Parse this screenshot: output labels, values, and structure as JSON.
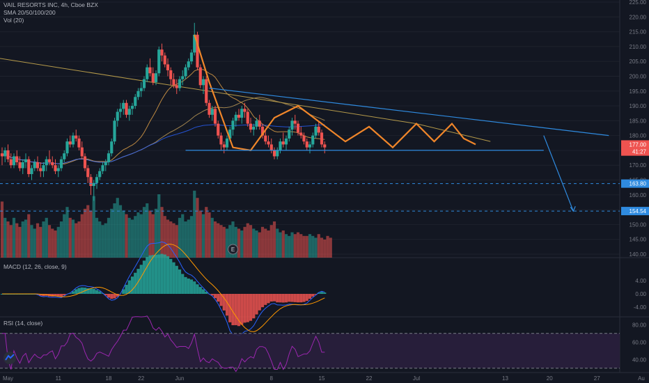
{
  "header": {
    "symbol_line": "VAIL RESORTS INC, 4h, Cboe BZX",
    "sma_line": "SMA 20/50/100/200",
    "vol_line": "Vol (20)"
  },
  "panes": {
    "macd_title": "MACD (12, 26, close, 9)",
    "rsi_title": "RSI (14, close)"
  },
  "colors": {
    "background": "#131722",
    "up": "#26a69a",
    "down": "#ef5350",
    "pattern_line": "#f0862a",
    "trendline": "#2f8be0",
    "macd_line": "#2962ff",
    "signal_line": "#ff9800",
    "rsi_line": "#9c27b0",
    "rsi_band": "#2a1f3d"
  },
  "chart_data": {
    "type": "candlestick",
    "interval": "4h",
    "price_axis": {
      "ticks": [
        140,
        145,
        150,
        155,
        160,
        165,
        170,
        175,
        180,
        185,
        190,
        195,
        200,
        205,
        210,
        215,
        220,
        225
      ],
      "tick_labels": [
        "140.00",
        "145.00",
        "150.00",
        "155.00",
        "160.00",
        "165.00",
        "170.00",
        "175.00",
        "180.00",
        "185.00",
        "190.00",
        "195.00",
        "200.00",
        "205.00",
        "210.00",
        "215.00",
        "220.00",
        "225.00"
      ]
    },
    "price_tags": [
      {
        "label": "177.00",
        "value": 177.0,
        "color": "#ef5350"
      },
      {
        "label": "41:27",
        "value": 174.6,
        "color": "#ef5350"
      },
      {
        "label": "163.80",
        "value": 163.8,
        "color": "#2f8be0"
      },
      {
        "label": "154.54",
        "value": 154.54,
        "color": "#2f8be0"
      }
    ],
    "time_axis": {
      "labels": [
        "May",
        "11",
        "18",
        "22",
        "Jun",
        "8",
        "15",
        "22",
        "Jul",
        "13",
        "20",
        "27",
        "Au"
      ],
      "x_index": [
        2,
        19,
        36,
        47,
        60,
        91,
        108,
        124,
        140,
        170,
        185,
        201,
        216
      ]
    },
    "candles": [
      [
        174,
        176,
        170,
        173
      ],
      [
        173,
        176,
        171,
        175
      ],
      [
        175,
        177,
        171,
        172
      ],
      [
        172,
        174,
        169,
        170
      ],
      [
        170,
        174,
        169,
        173
      ],
      [
        173,
        175,
        170,
        171
      ],
      [
        171,
        173,
        168,
        169
      ],
      [
        169,
        172,
        167,
        171
      ],
      [
        171,
        174,
        169,
        172
      ],
      [
        172,
        173,
        166,
        167
      ],
      [
        167,
        170,
        165,
        169
      ],
      [
        169,
        172,
        168,
        171
      ],
      [
        171,
        173,
        168,
        169
      ],
      [
        169,
        171,
        166,
        168
      ],
      [
        168,
        171,
        166,
        170
      ],
      [
        170,
        173,
        168,
        172
      ],
      [
        172,
        175,
        170,
        171
      ],
      [
        171,
        173,
        169,
        170
      ],
      [
        170,
        172,
        167,
        168
      ],
      [
        168,
        170,
        166,
        169
      ],
      [
        169,
        173,
        168,
        172
      ],
      [
        172,
        175,
        171,
        174
      ],
      [
        174,
        179,
        173,
        178
      ],
      [
        178,
        180,
        176,
        177
      ],
      [
        177,
        181,
        176,
        180
      ],
      [
        180,
        182,
        178,
        179
      ],
      [
        179,
        180,
        175,
        176
      ],
      [
        176,
        178,
        172,
        173
      ],
      [
        173,
        174,
        168,
        169
      ],
      [
        169,
        170,
        164,
        166
      ],
      [
        166,
        167,
        160,
        163
      ],
      [
        163,
        165,
        158,
        164
      ],
      [
        164,
        167,
        162,
        166
      ],
      [
        166,
        169,
        165,
        168
      ],
      [
        168,
        171,
        167,
        170
      ],
      [
        170,
        172,
        168,
        171
      ],
      [
        171,
        175,
        170,
        174
      ],
      [
        174,
        179,
        173,
        178
      ],
      [
        178,
        186,
        177,
        185
      ],
      [
        185,
        189,
        183,
        188
      ],
      [
        188,
        191,
        186,
        189
      ],
      [
        189,
        192,
        187,
        191
      ],
      [
        191,
        192,
        186,
        187
      ],
      [
        187,
        190,
        185,
        189
      ],
      [
        189,
        191,
        187,
        190
      ],
      [
        190,
        194,
        189,
        193
      ],
      [
        193,
        196,
        192,
        195
      ],
      [
        195,
        198,
        193,
        196
      ],
      [
        196,
        200,
        195,
        199
      ],
      [
        199,
        204,
        198,
        203
      ],
      [
        203,
        206,
        200,
        201
      ],
      [
        201,
        203,
        197,
        198
      ],
      [
        198,
        202,
        197,
        201
      ],
      [
        201,
        210,
        200,
        209
      ],
      [
        209,
        211,
        205,
        207
      ],
      [
        207,
        208,
        203,
        204
      ],
      [
        204,
        206,
        200,
        202
      ],
      [
        202,
        203,
        197,
        199
      ],
      [
        199,
        201,
        196,
        197
      ],
      [
        197,
        199,
        194,
        196
      ],
      [
        196,
        200,
        195,
        199
      ],
      [
        199,
        202,
        197,
        200
      ],
      [
        200,
        204,
        199,
        203
      ],
      [
        203,
        206,
        202,
        205
      ],
      [
        205,
        209,
        204,
        208
      ],
      [
        208,
        218,
        207,
        214
      ],
      [
        214,
        215,
        202,
        203
      ],
      [
        203,
        204,
        196,
        197
      ],
      [
        197,
        200,
        194,
        199
      ],
      [
        199,
        200,
        190,
        191
      ],
      [
        191,
        192,
        186,
        187
      ],
      [
        187,
        190,
        185,
        189
      ],
      [
        189,
        190,
        183,
        184
      ],
      [
        184,
        185,
        179,
        180
      ],
      [
        180,
        181,
        175,
        177
      ],
      [
        177,
        178,
        174,
        176
      ],
      [
        176,
        180,
        175,
        179
      ],
      [
        179,
        183,
        178,
        182
      ],
      [
        182,
        186,
        180,
        185
      ],
      [
        185,
        188,
        183,
        187
      ],
      [
        187,
        189,
        185,
        186
      ],
      [
        186,
        190,
        184,
        189
      ],
      [
        189,
        191,
        186,
        188
      ],
      [
        188,
        189,
        183,
        184
      ],
      [
        184,
        186,
        181,
        182
      ],
      [
        182,
        184,
        180,
        183
      ],
      [
        183,
        186,
        182,
        185
      ],
      [
        185,
        187,
        182,
        183
      ],
      [
        183,
        184,
        179,
        180
      ],
      [
        180,
        182,
        177,
        178
      ],
      [
        178,
        180,
        176,
        177
      ],
      [
        177,
        179,
        174,
        175
      ],
      [
        175,
        176,
        172,
        173
      ],
      [
        173,
        176,
        172,
        175
      ],
      [
        175,
        179,
        174,
        178
      ],
      [
        178,
        181,
        176,
        177
      ],
      [
        177,
        180,
        175,
        179
      ],
      [
        179,
        183,
        178,
        182
      ],
      [
        182,
        186,
        180,
        185
      ],
      [
        185,
        187,
        182,
        184
      ],
      [
        184,
        185,
        180,
        181
      ],
      [
        181,
        183,
        179,
        180
      ],
      [
        180,
        181,
        177,
        178
      ],
      [
        178,
        179,
        175,
        176
      ],
      [
        176,
        178,
        174,
        177
      ],
      [
        177,
        181,
        176,
        180
      ],
      [
        180,
        184,
        179,
        183
      ],
      [
        183,
        185,
        180,
        181
      ],
      [
        181,
        182,
        176,
        177
      ],
      [
        177,
        178,
        174,
        176
      ]
    ],
    "overlay_lines": [
      {
        "kind": "orange-zigzag",
        "points": [
          [
            65,
            214
          ],
          [
            70,
            198
          ],
          [
            78,
            176
          ],
          [
            84,
            175
          ],
          [
            92,
            186
          ],
          [
            100,
            190
          ],
          [
            108,
            184
          ],
          [
            116,
            178
          ],
          [
            124,
            183
          ],
          [
            132,
            176
          ],
          [
            140,
            184
          ],
          [
            146,
            178
          ],
          [
            152,
            184
          ],
          [
            156,
            179
          ],
          [
            160,
            177
          ]
        ]
      },
      {
        "kind": "upper-trendline",
        "points": [
          [
            70,
            196
          ],
          [
            205,
            180
          ]
        ]
      },
      {
        "kind": "support-line",
        "points": [
          [
            62,
            175
          ],
          [
            183,
            175
          ]
        ]
      },
      {
        "kind": "projection-arrow",
        "points": [
          [
            183,
            180
          ],
          [
            193,
            154.5
          ]
        ]
      },
      {
        "kind": "level-163.80",
        "value": 163.8
      },
      {
        "kind": "level-154.54",
        "value": 154.54
      }
    ],
    "volume": [
      31,
      22,
      20,
      18,
      22,
      19,
      17,
      20,
      21,
      24,
      18,
      16,
      19,
      17,
      20,
      22,
      18,
      16,
      15,
      17,
      20,
      24,
      28,
      22,
      21,
      19,
      20,
      24,
      27,
      29,
      26,
      34,
      22,
      20,
      18,
      19,
      22,
      27,
      30,
      33,
      29,
      26,
      24,
      22,
      21,
      23,
      25,
      24,
      28,
      30,
      26,
      24,
      27,
      35,
      28,
      23,
      21,
      20,
      19,
      18,
      22,
      24,
      20,
      21,
      23,
      37,
      33,
      26,
      24,
      28,
      25,
      22,
      20,
      19,
      18,
      17,
      16,
      18,
      20,
      17,
      16,
      15,
      17,
      19,
      18,
      16,
      15,
      14,
      17,
      16,
      15,
      18,
      20,
      16,
      14,
      15,
      13,
      12,
      14,
      13,
      14,
      13,
      12,
      12,
      13,
      12,
      11,
      13,
      11,
      10,
      12,
      11
    ]
  },
  "rsi_data": {
    "levels": [
      40,
      60,
      80
    ],
    "tick_labels": [
      "40.00",
      "60.00",
      "80.00"
    ]
  },
  "macd_data": {
    "ticks": [
      -4,
      0,
      4
    ],
    "tick_labels": [
      "-4.00",
      "0.00",
      "4.00"
    ]
  },
  "earnings_marker": "E"
}
